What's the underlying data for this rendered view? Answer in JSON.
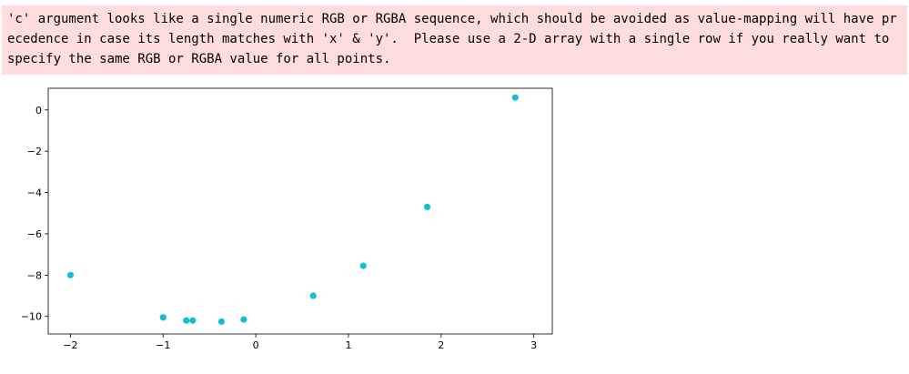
{
  "stderr": {
    "message": "'c' argument looks like a single numeric RGB or RGBA sequence, which should be avoided as value-mapping will have precedence in case its length matches with 'x' & 'y'.  Please use a 2-D array with a single row if you really want to specify the same RGB or RGBA value for all points."
  },
  "chart_data": {
    "type": "scatter",
    "title": "",
    "xlabel": "",
    "ylabel": "",
    "xlim": [
      -2.24,
      3.2
    ],
    "ylim": [
      -10.85,
      1.05
    ],
    "xticks": [
      -2,
      -1,
      0,
      1,
      2,
      3
    ],
    "yticks": [
      0,
      -2,
      -4,
      -6,
      -8,
      -10
    ],
    "xtick_labels": [
      "−2",
      "−1",
      "0",
      "1",
      "2",
      "3"
    ],
    "ytick_labels": [
      "0",
      "−2",
      "−4",
      "−6",
      "−8",
      "−10"
    ],
    "grid": false,
    "marker_color": "#17becf",
    "points": [
      {
        "x": -2.0,
        "y": -8.0
      },
      {
        "x": -1.0,
        "y": -10.05
      },
      {
        "x": -0.75,
        "y": -10.2
      },
      {
        "x": -0.68,
        "y": -10.2
      },
      {
        "x": -0.37,
        "y": -10.25
      },
      {
        "x": -0.13,
        "y": -10.15
      },
      {
        "x": 0.62,
        "y": -9.0
      },
      {
        "x": 1.16,
        "y": -7.55
      },
      {
        "x": 1.85,
        "y": -4.7
      },
      {
        "x": 2.8,
        "y": 0.6
      }
    ]
  }
}
